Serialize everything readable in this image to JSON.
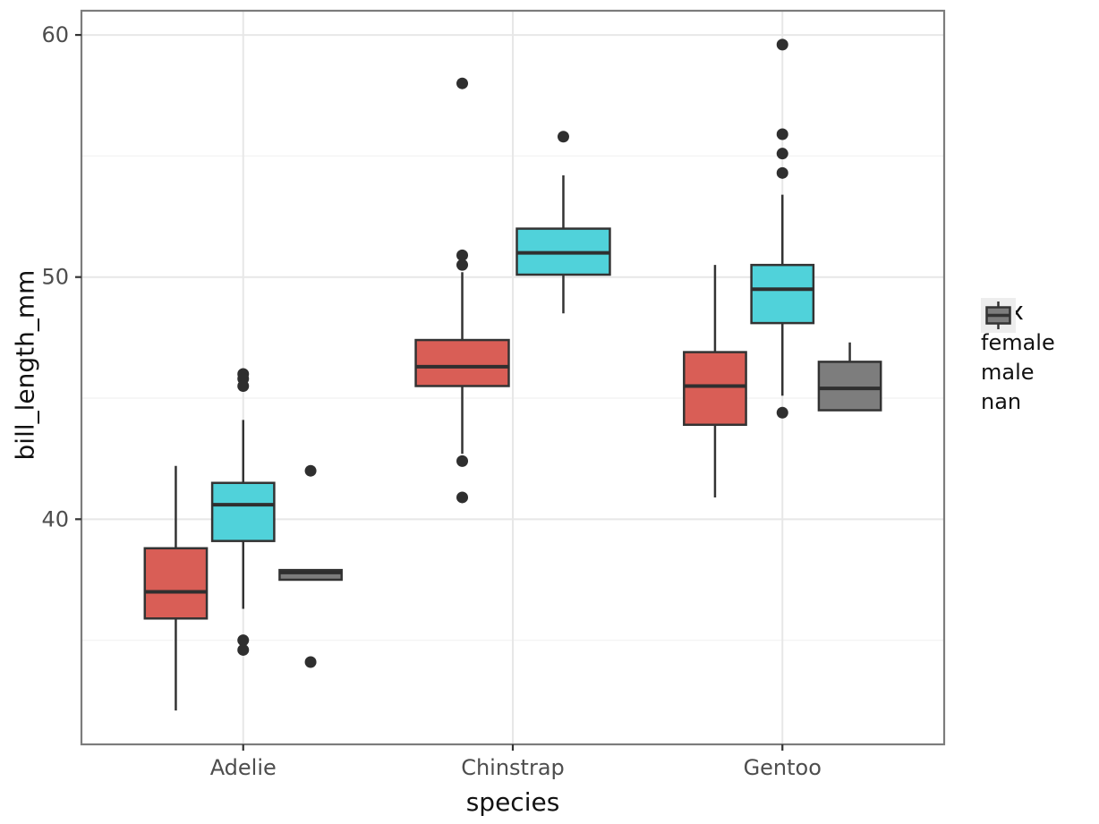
{
  "chart_data": {
    "type": "boxplot",
    "title": "",
    "xlabel": "species",
    "ylabel": "bill_length_mm",
    "categories": [
      "Adelie",
      "Chinstrap",
      "Gentoo"
    ],
    "x_positions": [
      1,
      2,
      3
    ],
    "xlim": [
      0.4,
      3.6
    ],
    "ylim": [
      30.7,
      61.0
    ],
    "y_ticks": [
      40,
      50,
      60
    ],
    "y_minor_ticks": [
      35,
      45,
      55
    ],
    "grid": true,
    "legend": {
      "title": "sex",
      "position": "right",
      "items": [
        {
          "label": "female",
          "color": "#D95E56"
        },
        {
          "label": "male",
          "color": "#50D2DA"
        },
        {
          "label": "nan",
          "color": "#7D7D7D"
        }
      ]
    },
    "colors": {
      "box_border": "#333333",
      "median": "#2F2F2F",
      "whisker": "#333333",
      "outlier": "#2F2F2F",
      "grid_major": "#E7E7E7",
      "grid_minor": "#F4F4F4",
      "panel_border": "#7C7C7C",
      "panel_bg": "#FFFFFF",
      "tick_mark": "#333333",
      "tick_label": "#4D4D4D",
      "legend_key_bg": "#EDEDED"
    },
    "boxes": [
      {
        "species": "Adelie",
        "sex": "female",
        "x": 0.75,
        "width": 0.23,
        "whisker_low": 32.1,
        "q1": 35.9,
        "median": 37.0,
        "q3": 38.8,
        "whisker_high": 42.2,
        "outliers": []
      },
      {
        "species": "Adelie",
        "sex": "male",
        "x": 1.0,
        "width": 0.23,
        "whisker_low": 36.3,
        "q1": 39.1,
        "median": 40.6,
        "q3": 41.5,
        "whisker_high": 44.1,
        "outliers": [
          46.0,
          45.8,
          45.5,
          35.0,
          34.6
        ]
      },
      {
        "species": "Adelie",
        "sex": "nan",
        "x": 1.25,
        "width": 0.23,
        "whisker_low": 37.5,
        "q1": 37.5,
        "median": 37.8,
        "q3": 37.9,
        "whisker_high": 37.9,
        "outliers": [
          42.0,
          34.1
        ]
      },
      {
        "species": "Chinstrap",
        "sex": "female",
        "x": 1.8125,
        "width": 0.345,
        "whisker_low": 42.7,
        "q1": 45.5,
        "median": 46.3,
        "q3": 47.4,
        "whisker_high": 50.2,
        "outliers": [
          58.0,
          50.9,
          50.5,
          42.4,
          40.9
        ]
      },
      {
        "species": "Chinstrap",
        "sex": "male",
        "x": 2.1875,
        "width": 0.345,
        "whisker_low": 48.5,
        "q1": 50.1,
        "median": 51.0,
        "q3": 52.0,
        "whisker_high": 54.2,
        "outliers": [
          55.8
        ]
      },
      {
        "species": "Gentoo",
        "sex": "female",
        "x": 2.75,
        "width": 0.23,
        "whisker_low": 40.9,
        "q1": 43.9,
        "median": 45.5,
        "q3": 46.9,
        "whisker_high": 50.5,
        "outliers": []
      },
      {
        "species": "Gentoo",
        "sex": "male",
        "x": 3.0,
        "width": 0.23,
        "whisker_low": 45.1,
        "q1": 48.1,
        "median": 49.5,
        "q3": 50.5,
        "whisker_high": 53.4,
        "outliers": [
          59.6,
          55.9,
          55.1,
          54.3,
          44.4
        ]
      },
      {
        "species": "Gentoo",
        "sex": "nan",
        "x": 3.25,
        "width": 0.23,
        "whisker_low": 44.5,
        "q1": 44.5,
        "median": 45.4,
        "q3": 46.5,
        "whisker_high": 47.3,
        "outliers": []
      }
    ]
  }
}
